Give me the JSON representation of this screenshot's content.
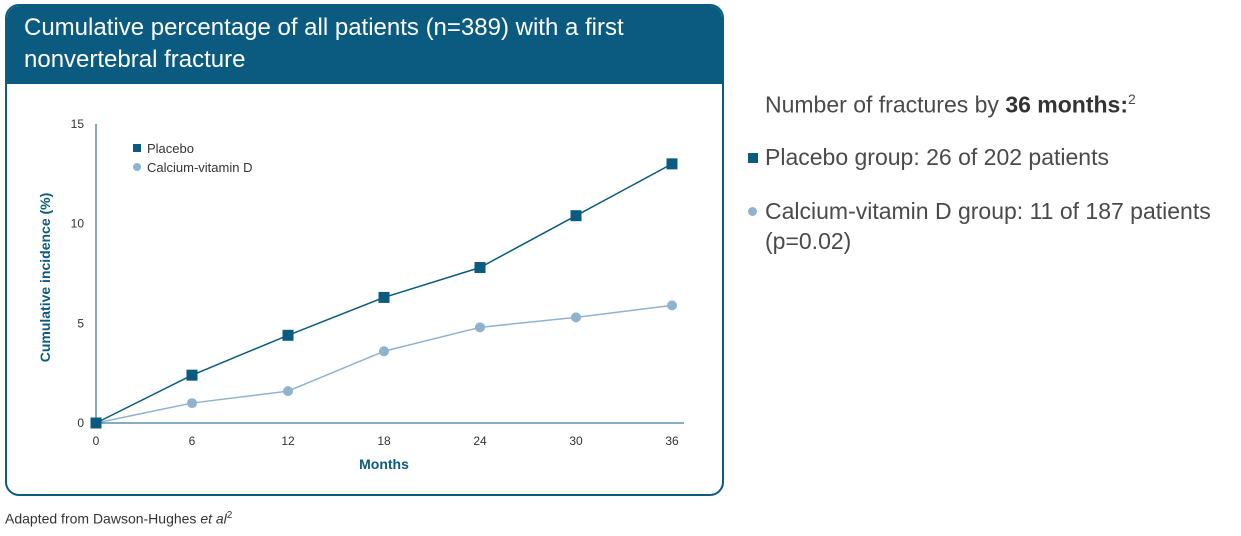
{
  "header": {
    "line1": "Cumulative percentage of all patients (n=389) with a first",
    "line2": "nonvertebral fracture"
  },
  "chart_data": {
    "type": "line",
    "x": [
      0,
      6,
      12,
      18,
      24,
      30,
      36
    ],
    "xlabel": "Months",
    "ylabel": "Cumulative incidence (%)",
    "xlim": [
      0,
      36
    ],
    "ylim": [
      0,
      15
    ],
    "xticks": [
      "0",
      "6",
      "12",
      "18",
      "24",
      "30",
      "36"
    ],
    "yticks": [
      "0",
      "5",
      "10",
      "15"
    ],
    "grid": false,
    "legend_position": "top-left",
    "series": [
      {
        "name": "Placebo",
        "marker": "square",
        "color": "#0b5a80",
        "values": [
          0,
          2.4,
          4.4,
          6.3,
          7.8,
          10.4,
          13.0
        ]
      },
      {
        "name": "Calcium-vitamin D",
        "marker": "circle",
        "color": "#8fb3cf",
        "values": [
          0,
          1.0,
          1.6,
          3.6,
          4.8,
          5.3,
          5.9
        ]
      }
    ]
  },
  "summary": {
    "title_prefix": "Number of fractures by ",
    "title_bold": "36 months:",
    "title_sup": "2",
    "placebo_text": "Placebo group: 26 of 202 patients",
    "cavd_text_line1": "Calcium-vitamin D group: 11 of 187 patients",
    "cavd_text_line2": "(p=0.02)"
  },
  "footnote": {
    "prefix": "Adapted from Dawson-Hughes ",
    "italic": "et al",
    "sup": "2"
  }
}
